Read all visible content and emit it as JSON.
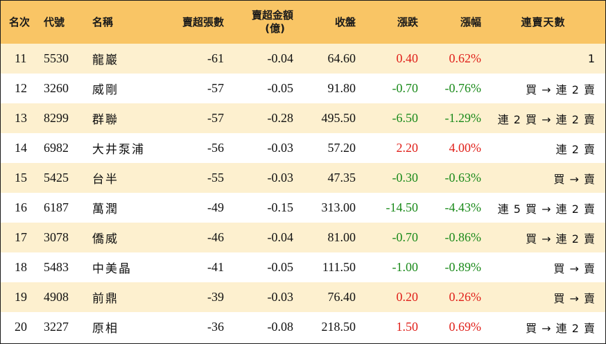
{
  "headers": {
    "rank": "名次",
    "code": "代號",
    "name": "名稱",
    "sell_lots": "賣超張數",
    "sell_amount_line1": "賣超金額",
    "sell_amount_line2": "(億)",
    "close": "收盤",
    "change": "漲跌",
    "change_pct": "漲幅",
    "streak": "連賣天數"
  },
  "rows": [
    {
      "rank": "11",
      "code": "5530",
      "name": "龍巖",
      "sell_lots": "-61",
      "sell_amount": "-0.04",
      "close": "64.60",
      "change": "0.40",
      "change_pct": "0.62%",
      "direction": "up",
      "streak": "1"
    },
    {
      "rank": "12",
      "code": "3260",
      "name": "威剛",
      "sell_lots": "-57",
      "sell_amount": "-0.05",
      "close": "91.80",
      "change": "-0.70",
      "change_pct": "-0.76%",
      "direction": "down",
      "streak": "買 → 連 2 賣"
    },
    {
      "rank": "13",
      "code": "8299",
      "name": "群聯",
      "sell_lots": "-57",
      "sell_amount": "-0.28",
      "close": "495.50",
      "change": "-6.50",
      "change_pct": "-1.29%",
      "direction": "down",
      "streak": "連 2 買 → 連 2 賣"
    },
    {
      "rank": "14",
      "code": "6982",
      "name": "大井泵浦",
      "sell_lots": "-56",
      "sell_amount": "-0.03",
      "close": "57.20",
      "change": "2.20",
      "change_pct": "4.00%",
      "direction": "up",
      "streak": "連 2 賣"
    },
    {
      "rank": "15",
      "code": "5425",
      "name": "台半",
      "sell_lots": "-55",
      "sell_amount": "-0.03",
      "close": "47.35",
      "change": "-0.30",
      "change_pct": "-0.63%",
      "direction": "down",
      "streak": "買 → 賣"
    },
    {
      "rank": "16",
      "code": "6187",
      "name": "萬潤",
      "sell_lots": "-49",
      "sell_amount": "-0.15",
      "close": "313.00",
      "change": "-14.50",
      "change_pct": "-4.43%",
      "direction": "down",
      "streak": "連 5 買 → 連 2 賣"
    },
    {
      "rank": "17",
      "code": "3078",
      "name": "僑威",
      "sell_lots": "-46",
      "sell_amount": "-0.04",
      "close": "81.00",
      "change": "-0.70",
      "change_pct": "-0.86%",
      "direction": "down",
      "streak": "買 → 連 2 賣"
    },
    {
      "rank": "18",
      "code": "5483",
      "name": "中美晶",
      "sell_lots": "-41",
      "sell_amount": "-0.05",
      "close": "111.50",
      "change": "-1.00",
      "change_pct": "-0.89%",
      "direction": "down",
      "streak": "買 → 賣"
    },
    {
      "rank": "19",
      "code": "4908",
      "name": "前鼎",
      "sell_lots": "-39",
      "sell_amount": "-0.03",
      "close": "76.40",
      "change": "0.20",
      "change_pct": "0.26%",
      "direction": "up",
      "streak": "買 → 賣"
    },
    {
      "rank": "20",
      "code": "3227",
      "name": "原相",
      "sell_lots": "-36",
      "sell_amount": "-0.08",
      "close": "218.50",
      "change": "1.50",
      "change_pct": "0.69%",
      "direction": "up",
      "streak": "買 → 連 2 賣"
    }
  ],
  "colors": {
    "header_bg": "#f9c565",
    "odd_row_bg": "#fdf0cf",
    "up": "#e0201a",
    "down": "#1a8a1a"
  }
}
